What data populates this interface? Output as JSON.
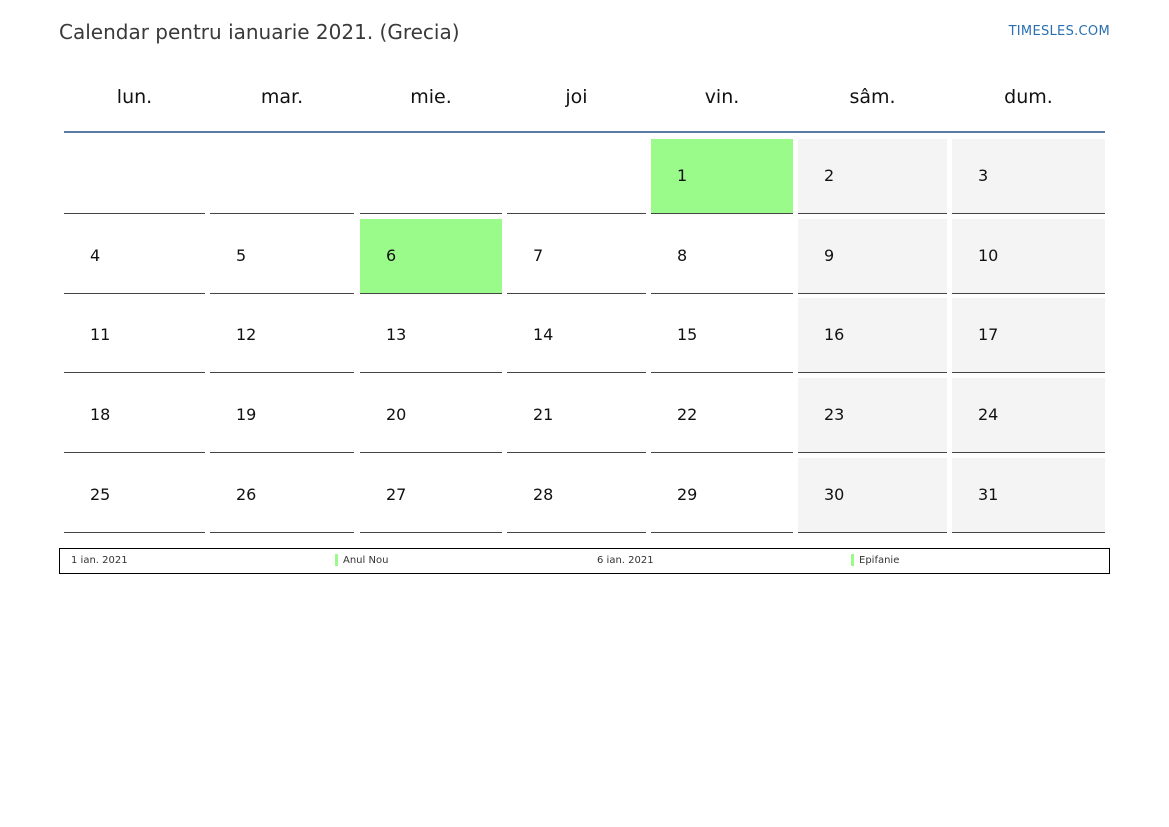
{
  "header": {
    "title": "Calendar pentru ianuarie 2021. (Grecia)",
    "brand": "TIMESLES.COM"
  },
  "weekdays": [
    "lun.",
    "mar.",
    "mie.",
    "joi",
    "vin.",
    "sâm.",
    "dum."
  ],
  "weeks": [
    [
      "",
      "",
      "",
      "",
      "1",
      "2",
      "3"
    ],
    [
      "4",
      "5",
      "6",
      "7",
      "8",
      "9",
      "10"
    ],
    [
      "11",
      "12",
      "13",
      "14",
      "15",
      "16",
      "17"
    ],
    [
      "18",
      "19",
      "20",
      "21",
      "22",
      "23",
      "24"
    ],
    [
      "25",
      "26",
      "27",
      "28",
      "29",
      "30",
      "31"
    ]
  ],
  "holidays": [
    {
      "date_label": "1 ian. 2021",
      "name": "Anul Nou",
      "day": "1"
    },
    {
      "date_label": "6 ian. 2021",
      "name": "Epifanie",
      "day": "6"
    }
  ],
  "colors": {
    "holiday": "#9afa8a",
    "weekend": "#f4f4f4",
    "header_line": "#5b7ba5",
    "brand": "#2a6fb0"
  }
}
